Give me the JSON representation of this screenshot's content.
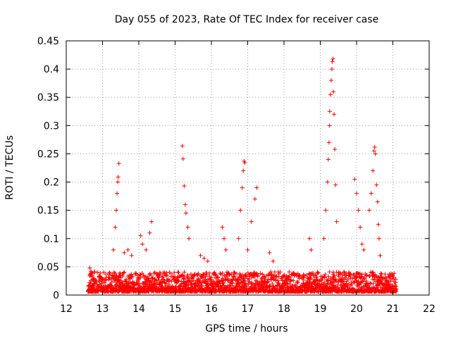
{
  "chart_data": {
    "type": "scatter",
    "title": "Day 055 of 2023, Rate Of TEC Index for receiver case",
    "xlabel": "GPS time / hours",
    "ylabel": "ROTI / TECUs",
    "xlim": [
      12,
      22
    ],
    "ylim": [
      0,
      0.45
    ],
    "xticks": [
      "12",
      "13",
      "14",
      "15",
      "16",
      "17",
      "18",
      "19",
      "20",
      "21",
      "22"
    ],
    "yticks": [
      "0",
      "0.05",
      "0.1",
      "0.15",
      "0.2",
      "0.25",
      "0.3",
      "0.35",
      "0.4",
      "0.45"
    ],
    "grid": true,
    "marker": "plus",
    "color": "#ff0000",
    "x_range_data": [
      12.6,
      21.1
    ],
    "series": [
      {
        "points": [
          [
            12.65,
            0.048
          ],
          [
            12.68,
            0.042
          ],
          [
            12.72,
            0.035
          ],
          [
            12.75,
            0.028
          ],
          [
            12.8,
            0.022
          ],
          [
            13.3,
            0.08
          ],
          [
            13.35,
            0.12
          ],
          [
            13.38,
            0.15
          ],
          [
            13.4,
            0.18
          ],
          [
            13.42,
            0.2
          ],
          [
            13.43,
            0.209
          ],
          [
            13.45,
            0.233
          ],
          [
            13.6,
            0.075
          ],
          [
            13.7,
            0.08
          ],
          [
            13.8,
            0.07
          ],
          [
            14.05,
            0.105
          ],
          [
            14.1,
            0.09
          ],
          [
            14.2,
            0.08
          ],
          [
            14.3,
            0.11
          ],
          [
            14.35,
            0.13
          ],
          [
            15.2,
            0.264
          ],
          [
            15.22,
            0.241
          ],
          [
            15.25,
            0.193
          ],
          [
            15.28,
            0.16
          ],
          [
            15.3,
            0.145
          ],
          [
            15.35,
            0.12
          ],
          [
            15.38,
            0.1
          ],
          [
            15.7,
            0.07
          ],
          [
            15.8,
            0.065
          ],
          [
            15.9,
            0.06
          ],
          [
            16.3,
            0.12
          ],
          [
            16.35,
            0.1
          ],
          [
            16.4,
            0.08
          ],
          [
            16.75,
            0.1
          ],
          [
            16.8,
            0.15
          ],
          [
            16.85,
            0.19
          ],
          [
            16.88,
            0.22
          ],
          [
            16.9,
            0.237
          ],
          [
            16.92,
            0.234
          ],
          [
            17.0,
            0.08
          ],
          [
            17.1,
            0.13
          ],
          [
            17.2,
            0.17
          ],
          [
            17.25,
            0.19
          ],
          [
            17.6,
            0.075
          ],
          [
            17.7,
            0.06
          ],
          [
            18.7,
            0.1
          ],
          [
            18.75,
            0.08
          ],
          [
            19.1,
            0.1
          ],
          [
            19.15,
            0.15
          ],
          [
            19.2,
            0.2
          ],
          [
            19.22,
            0.24
          ],
          [
            19.24,
            0.27
          ],
          [
            19.25,
            0.3
          ],
          [
            19.26,
            0.325
          ],
          [
            19.28,
            0.355
          ],
          [
            19.3,
            0.38
          ],
          [
            19.32,
            0.4
          ],
          [
            19.33,
            0.413
          ],
          [
            19.35,
            0.418
          ],
          [
            19.36,
            0.36
          ],
          [
            19.38,
            0.32
          ],
          [
            19.4,
            0.258
          ],
          [
            19.42,
            0.195
          ],
          [
            19.45,
            0.13
          ],
          [
            19.95,
            0.205
          ],
          [
            20.0,
            0.18
          ],
          [
            20.05,
            0.15
          ],
          [
            20.1,
            0.12
          ],
          [
            20.15,
            0.09
          ],
          [
            20.2,
            0.08
          ],
          [
            20.35,
            0.15
          ],
          [
            20.4,
            0.18
          ],
          [
            20.45,
            0.22
          ],
          [
            20.48,
            0.255
          ],
          [
            20.5,
            0.262
          ],
          [
            20.52,
            0.25
          ],
          [
            20.55,
            0.195
          ],
          [
            20.58,
            0.165
          ],
          [
            20.6,
            0.125
          ],
          [
            20.62,
            0.1
          ],
          [
            20.65,
            0.07
          ]
        ]
      }
    ]
  }
}
